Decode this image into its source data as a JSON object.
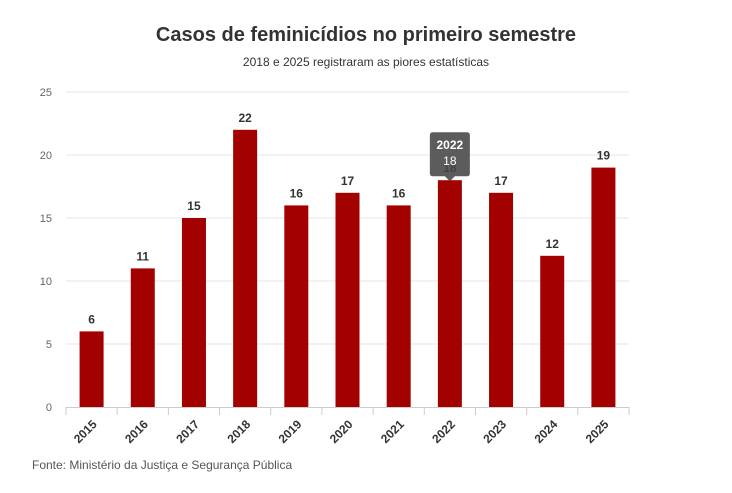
{
  "chart_data": {
    "type": "bar",
    "title": "Casos de feminicídios no primeiro semestre",
    "subtitle": "2018 e 2025 registraram as piores estatísticas",
    "categories": [
      "2015",
      "2016",
      "2017",
      "2018",
      "2019",
      "2020",
      "2021",
      "2022",
      "2023",
      "2024",
      "2025"
    ],
    "values": [
      6,
      11,
      15,
      22,
      16,
      17,
      16,
      18,
      17,
      12,
      19
    ],
    "ylim": [
      0,
      25
    ],
    "yticks": [
      0,
      5,
      10,
      15,
      20,
      25
    ],
    "xlabel": "",
    "ylabel": "",
    "grid": true,
    "bar_color": "#a30000",
    "tooltip": {
      "category": "2022",
      "value": "18"
    }
  },
  "source": "Fonte: Ministério da Justiça e Segurança Pública"
}
